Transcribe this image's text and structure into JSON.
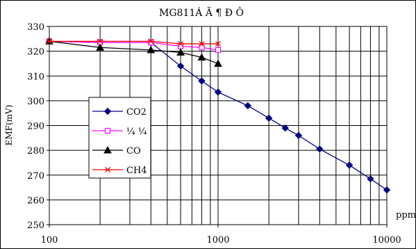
{
  "chart_data": {
    "type": "line",
    "title": "MG811Á Ã ¶ Ð Ô",
    "xlabel": "ppm",
    "ylabel": "EMF(mV)",
    "x_scale": "log",
    "xlim": [
      100,
      10000
    ],
    "ylim": [
      250,
      330
    ],
    "x_tick_labels": [
      "100",
      "1000",
      "10000"
    ],
    "y_tick_labels": [
      "250",
      "260",
      "270",
      "280",
      "290",
      "300",
      "310",
      "320",
      "330"
    ],
    "grid": true,
    "legend_position": "left-center",
    "series": [
      {
        "name": "CO2",
        "color": "#000080",
        "marker": "diamond",
        "points": [
          [
            100,
            324
          ],
          [
            200,
            323.5
          ],
          [
            400,
            323.5
          ],
          [
            600,
            314
          ],
          [
            800,
            308
          ],
          [
            1000,
            303.5
          ],
          [
            1500,
            298
          ],
          [
            2000,
            293
          ],
          [
            2500,
            289
          ],
          [
            3000,
            286
          ],
          [
            4000,
            280.5
          ],
          [
            6000,
            274
          ],
          [
            8000,
            268.5
          ],
          [
            10000,
            264
          ]
        ]
      },
      {
        "name": "¼ ¼",
        "color": "#ff00ff",
        "marker": "square",
        "points": [
          [
            100,
            324
          ],
          [
            200,
            323.5
          ],
          [
            400,
            323.5
          ],
          [
            600,
            322
          ],
          [
            800,
            321.5
          ],
          [
            1000,
            320.5
          ]
        ]
      },
      {
        "name": "CO",
        "color": "#000000",
        "marker": "triangle",
        "points": [
          [
            100,
            324
          ],
          [
            200,
            321.5
          ],
          [
            400,
            320.5
          ],
          [
            600,
            319.5
          ],
          [
            800,
            317.5
          ],
          [
            1000,
            315
          ]
        ]
      },
      {
        "name": "CH4",
        "color": "#ff0000",
        "marker": "x",
        "points": [
          [
            100,
            324
          ],
          [
            200,
            324
          ],
          [
            400,
            324
          ],
          [
            600,
            323
          ],
          [
            800,
            323
          ],
          [
            1000,
            323
          ]
        ]
      }
    ]
  }
}
